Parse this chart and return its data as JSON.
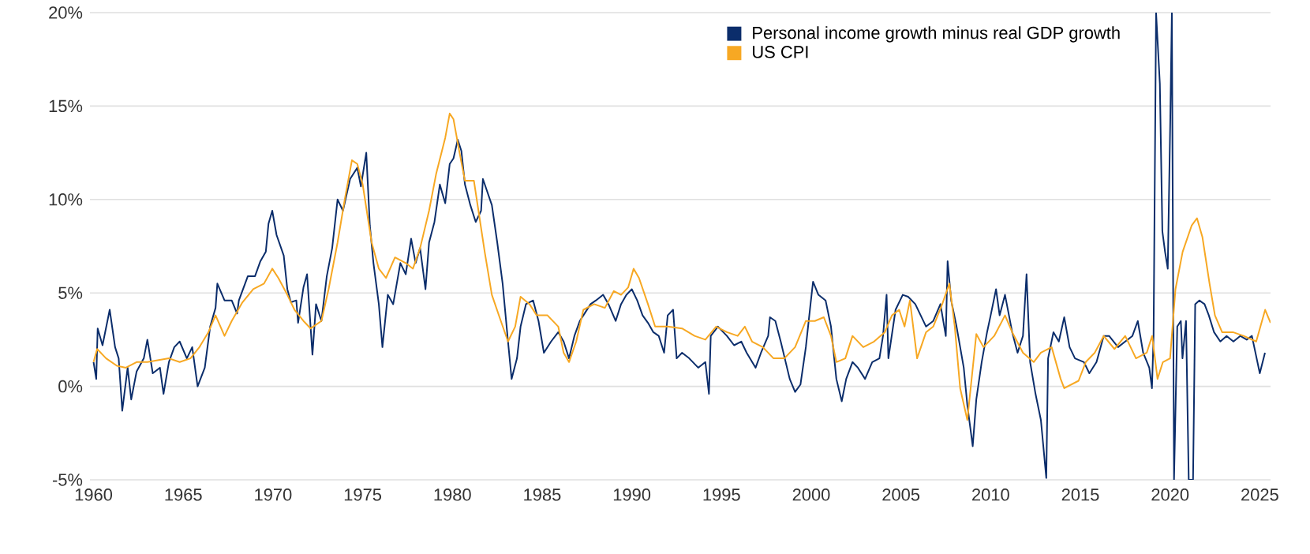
{
  "chart_data": {
    "type": "line",
    "ylim": [
      -5,
      20
    ],
    "xlim": [
      1959.8,
      2025.6
    ],
    "yticks": [
      {
        "value": -5,
        "label": "-5%"
      },
      {
        "value": 0,
        "label": "0%"
      },
      {
        "value": 5,
        "label": "5%"
      },
      {
        "value": 10,
        "label": "10%"
      },
      {
        "value": 15,
        "label": "15%"
      },
      {
        "value": 20,
        "label": "20%"
      }
    ],
    "xticks": [
      1960,
      1965,
      1970,
      1975,
      1980,
      1985,
      1990,
      1995,
      2000,
      2005,
      2010,
      2015,
      2020,
      2025
    ],
    "grid": "y",
    "legend": "top right",
    "marker": "none",
    "line_style": "solid",
    "series": [
      {
        "name": "Personal income growth minus real GDP growth",
        "color": "#0b2d6b",
        "x": [
          1960.0,
          1960.15,
          1960.23,
          1960.5,
          1960.9,
          1961.2,
          1961.4,
          1961.6,
          1961.9,
          1962.1,
          1962.4,
          1962.8,
          1963.0,
          1963.3,
          1963.7,
          1963.9,
          1964.2,
          1964.5,
          1964.8,
          1965.2,
          1965.5,
          1965.8,
          1966.2,
          1966.5,
          1966.8,
          1966.9,
          1967.3,
          1967.7,
          1968.0,
          1968.1,
          1968.6,
          1969.0,
          1969.3,
          1969.6,
          1969.75,
          1969.96,
          1970.2,
          1970.6,
          1970.8,
          1971.0,
          1971.3,
          1971.4,
          1971.7,
          1971.9,
          1972.2,
          1972.4,
          1972.7,
          1973.0,
          1973.3,
          1973.6,
          1973.9,
          1974.3,
          1974.7,
          1974.9,
          1975.2,
          1975.4,
          1975.6,
          1975.9,
          1976.1,
          1976.4,
          1976.7,
          1977.1,
          1977.4,
          1977.7,
          1977.95,
          1978.2,
          1978.5,
          1978.7,
          1979.0,
          1979.3,
          1979.6,
          1979.85,
          1980.06,
          1980.3,
          1980.5,
          1980.7,
          1981.0,
          1981.3,
          1981.6,
          1981.7,
          1982.2,
          1982.5,
          1982.8,
          1983.1,
          1983.3,
          1983.6,
          1983.8,
          1984.1,
          1984.5,
          1984.8,
          1985.1,
          1985.5,
          1985.9,
          1986.2,
          1986.5,
          1986.8,
          1987.1,
          1987.3,
          1987.7,
          1988.0,
          1988.4,
          1988.7,
          1989.1,
          1989.4,
          1989.7,
          1990.0,
          1990.3,
          1990.6,
          1990.9,
          1991.2,
          1991.5,
          1991.8,
          1992.0,
          1992.3,
          1992.5,
          1992.8,
          1993.2,
          1993.7,
          1994.1,
          1994.3,
          1994.4,
          1994.8,
          1995.3,
          1995.7,
          1996.1,
          1996.4,
          1996.9,
          1997.2,
          1997.6,
          1997.7,
          1998.0,
          1998.3,
          1998.8,
          1999.1,
          1999.4,
          1999.7,
          1999.96,
          2000.1,
          2000.4,
          2000.8,
          2001.1,
          2001.4,
          2001.7,
          2001.95,
          2002.3,
          2002.6,
          2003.0,
          2003.4,
          2003.8,
          2004.0,
          2004.2,
          2004.3,
          2004.7,
          2005.1,
          2005.4,
          2005.8,
          2006.1,
          2006.4,
          2006.8,
          2007.2,
          2007.5,
          2007.6,
          2007.8,
          2008.1,
          2008.5,
          2008.7,
          2009.0,
          2009.2,
          2009.5,
          2009.8,
          2010.0,
          2010.3,
          2010.5,
          2010.8,
          2011.2,
          2011.5,
          2011.8,
          2012.0,
          2012.2,
          2012.5,
          2012.8,
          2013.1,
          2013.2,
          2013.5,
          2013.8,
          2014.1,
          2014.4,
          2014.7,
          2015.2,
          2015.5,
          2015.9,
          2016.3,
          2016.6,
          2017.1,
          2017.5,
          2017.9,
          2018.2,
          2018.5,
          2018.84,
          2018.99,
          2019.08,
          2019.22,
          2019.43,
          2019.57,
          2019.72,
          2019.87,
          2020.01,
          2020.1,
          2020.22,
          2020.4,
          2020.6,
          2020.69,
          2020.89,
          2021.04,
          2021.28,
          2021.4,
          2021.63,
          2021.92,
          2022.16,
          2022.45,
          2022.8,
          2023.15,
          2023.53,
          2023.91,
          2024.27,
          2024.56,
          2025.0,
          2025.29
        ],
        "values": [
          1.3,
          0.4,
          3.1,
          2.2,
          4.1,
          2.1,
          1.5,
          -1.3,
          1.0,
          -0.7,
          0.8,
          1.5,
          2.5,
          0.7,
          1.0,
          -0.4,
          1.3,
          2.1,
          2.4,
          1.5,
          2.1,
          0.0,
          1.0,
          3.2,
          4.2,
          5.5,
          4.6,
          4.6,
          3.9,
          4.6,
          5.9,
          5.9,
          6.7,
          7.2,
          8.7,
          9.4,
          8.1,
          7.0,
          5.2,
          4.5,
          4.6,
          3.4,
          5.3,
          6.0,
          1.7,
          4.4,
          3.5,
          5.9,
          7.4,
          10.0,
          9.4,
          11.1,
          11.7,
          10.7,
          12.5,
          8.6,
          6.6,
          4.4,
          2.1,
          4.9,
          4.4,
          6.6,
          6.0,
          7.9,
          6.6,
          7.4,
          5.2,
          7.7,
          8.8,
          10.8,
          9.8,
          11.9,
          12.2,
          13.2,
          12.6,
          10.8,
          9.7,
          8.8,
          9.4,
          11.1,
          9.7,
          7.7,
          5.5,
          2.4,
          0.4,
          1.5,
          3.2,
          4.4,
          4.6,
          3.5,
          1.8,
          2.4,
          2.9,
          2.4,
          1.5,
          2.7,
          3.5,
          3.8,
          4.4,
          4.6,
          4.9,
          4.4,
          3.5,
          4.4,
          4.9,
          5.2,
          4.6,
          3.8,
          3.4,
          2.9,
          2.7,
          1.8,
          3.8,
          4.1,
          1.5,
          1.8,
          1.5,
          1.0,
          1.3,
          -0.4,
          2.7,
          3.2,
          2.7,
          2.2,
          2.4,
          1.8,
          1.0,
          1.8,
          2.7,
          3.7,
          3.5,
          2.4,
          0.4,
          -0.3,
          0.1,
          2.1,
          4.4,
          5.6,
          4.9,
          4.6,
          3.2,
          0.4,
          -0.8,
          0.4,
          1.3,
          1.0,
          0.4,
          1.3,
          1.5,
          2.7,
          4.9,
          1.5,
          4.1,
          4.9,
          4.8,
          4.4,
          3.8,
          3.2,
          3.5,
          4.4,
          2.7,
          6.7,
          4.6,
          3.2,
          1.0,
          -1.0,
          -3.2,
          -0.7,
          1.3,
          2.9,
          3.8,
          5.2,
          3.8,
          4.9,
          2.9,
          1.8,
          2.7,
          6.0,
          1.3,
          -0.4,
          -1.8,
          -4.9,
          1.5,
          2.9,
          2.4,
          3.7,
          2.1,
          1.5,
          1.3,
          0.7,
          1.3,
          2.7,
          2.7,
          2.1,
          2.4,
          2.7,
          3.5,
          1.8,
          1.0,
          -0.1,
          2.7,
          20,
          16.2,
          8.3,
          7.2,
          6.3,
          14.2,
          20,
          -5,
          3.2,
          3.5,
          1.5,
          3.5,
          -5,
          -5,
          4.4,
          4.6,
          4.4,
          3.8,
          2.9,
          2.4,
          2.7,
          2.4,
          2.7,
          2.5,
          2.7,
          0.7,
          1.8
        ]
      },
      {
        "name": "US CPI",
        "color": "#f7a823",
        "x": [
          1960.0,
          1960.2,
          1960.7,
          1961.3,
          1961.8,
          1962.4,
          1963.0,
          1963.6,
          1964.2,
          1964.8,
          1965.4,
          1965.9,
          1966.4,
          1966.8,
          1967.3,
          1967.7,
          1968.3,
          1968.9,
          1969.5,
          1969.96,
          1970.3,
          1970.8,
          1971.2,
          1971.7,
          1972.1,
          1972.7,
          1973.1,
          1973.6,
          1974.0,
          1974.4,
          1974.7,
          1975.0,
          1975.5,
          1975.9,
          1976.3,
          1976.8,
          1977.4,
          1977.8,
          1978.2,
          1978.7,
          1979.1,
          1979.6,
          1979.85,
          1980.06,
          1980.4,
          1980.7,
          1981.2,
          1981.8,
          1982.2,
          1982.7,
          1983.1,
          1983.5,
          1983.8,
          1984.3,
          1984.7,
          1985.3,
          1985.9,
          1986.2,
          1986.5,
          1986.9,
          1987.3,
          1987.9,
          1988.5,
          1989.0,
          1989.4,
          1989.8,
          1990.1,
          1990.4,
          1990.9,
          1991.3,
          1992.0,
          1992.8,
          1993.5,
          1994.1,
          1994.7,
          1995.3,
          1995.9,
          1996.3,
          1996.7,
          1997.3,
          1997.9,
          1998.5,
          1999.1,
          1999.7,
          2000.2,
          2000.7,
          2001.1,
          2001.4,
          2001.9,
          2002.3,
          2002.9,
          2003.5,
          2004.1,
          2004.5,
          2004.9,
          2005.2,
          2005.5,
          2005.9,
          2006.4,
          2006.8,
          2007.3,
          2007.7,
          2008.0,
          2008.3,
          2008.7,
          2009.2,
          2009.6,
          2010.2,
          2010.8,
          2011.2,
          2011.8,
          2012.4,
          2012.8,
          2013.4,
          2013.9,
          2014.1,
          2014.9,
          2015.3,
          2015.8,
          2016.3,
          2016.9,
          2017.5,
          2018.1,
          2018.7,
          2019.0,
          2019.3,
          2019.6,
          2020.0,
          2020.3,
          2020.7,
          2021.2,
          2021.5,
          2021.8,
          2022.2,
          2022.5,
          2022.9,
          2023.5,
          2024.1,
          2024.8,
          2025.3,
          2025.6
        ],
        "values": [
          1.3,
          2.0,
          1.5,
          1.1,
          1.0,
          1.3,
          1.3,
          1.4,
          1.5,
          1.3,
          1.5,
          2.1,
          2.9,
          3.8,
          2.7,
          3.5,
          4.5,
          5.2,
          5.5,
          6.3,
          5.8,
          4.9,
          4.1,
          3.5,
          3.1,
          3.5,
          5.2,
          7.7,
          10.0,
          12.1,
          11.9,
          10.8,
          7.7,
          6.3,
          5.8,
          6.9,
          6.6,
          6.3,
          7.4,
          9.4,
          11.4,
          13.3,
          14.6,
          14.3,
          12.5,
          11.0,
          11.0,
          7.2,
          4.9,
          3.5,
          2.4,
          3.2,
          4.8,
          4.4,
          3.8,
          3.8,
          3.2,
          1.8,
          1.3,
          2.4,
          4.1,
          4.4,
          4.2,
          5.1,
          4.9,
          5.3,
          6.3,
          5.8,
          4.4,
          3.2,
          3.2,
          3.1,
          2.7,
          2.5,
          3.2,
          2.9,
          2.7,
          3.2,
          2.4,
          2.1,
          1.5,
          1.5,
          2.1,
          3.5,
          3.5,
          3.7,
          2.7,
          1.3,
          1.5,
          2.7,
          2.1,
          2.4,
          2.9,
          3.8,
          4.1,
          3.2,
          4.6,
          1.5,
          2.9,
          3.2,
          4.4,
          5.5,
          3.2,
          -0.1,
          -1.8,
          2.8,
          2.1,
          2.7,
          3.8,
          2.9,
          1.8,
          1.3,
          1.8,
          2.1,
          0.4,
          -0.1,
          0.3,
          1.3,
          1.8,
          2.7,
          2.0,
          2.7,
          1.5,
          1.8,
          2.7,
          0.4,
          1.3,
          1.5,
          5.2,
          7.2,
          8.6,
          9.0,
          8.0,
          5.5,
          3.8,
          2.9,
          2.9,
          2.7,
          2.4,
          4.1,
          3.4
        ]
      }
    ]
  }
}
